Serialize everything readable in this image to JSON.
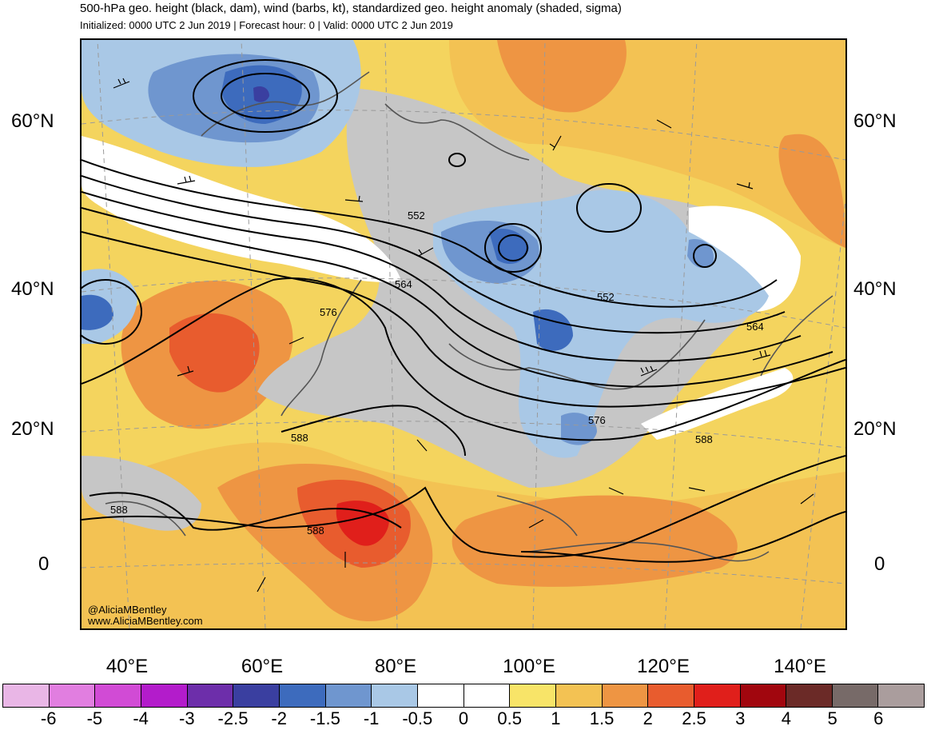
{
  "title": "500-hPa geo. height (black, dam), wind (barbs, kt), standardized geo. height anomaly (shaded, sigma)",
  "subtitle": "Initialized: 0000 UTC 2 Jun 2019 | Forecast hour: 0 | Valid: 0000 UTC 2 Jun 2019",
  "map": {
    "lat_labels": [
      "60°N",
      "40°N",
      "20°N",
      "0"
    ],
    "lon_labels": [
      "40°E",
      "60°E",
      "80°E",
      "100°E",
      "120°E",
      "140°E"
    ],
    "contour_labels": [
      "552",
      "564",
      "576",
      "588",
      "552",
      "564",
      "576",
      "588",
      "588",
      "588"
    ],
    "credit_handle": "@AliciaMBentley",
    "credit_site": "www.AliciaMBentley.com"
  },
  "colorbar": {
    "labels": [
      "-6",
      "-5",
      "-4",
      "-3",
      "-2.5",
      "-2",
      "-1.5",
      "-1",
      "-0.5",
      "0",
      "0.5",
      "1",
      "1.5",
      "2",
      "2.5",
      "3",
      "4",
      "5",
      "6"
    ],
    "colors": [
      "#e9b6e6",
      "#e17ee0",
      "#d14bd5",
      "#b31ccb",
      "#6d2eaa",
      "#3a3fa0",
      "#3d6bbd",
      "#6f96cf",
      "#a9c8e6",
      "#ffffff",
      "#ffffff",
      "#f8e468",
      "#f3c253",
      "#ee9543",
      "#e85c2e",
      "#e01f1b",
      "#a1060e",
      "#6b2a27",
      "#776a68",
      "#aa9d9d"
    ]
  }
}
